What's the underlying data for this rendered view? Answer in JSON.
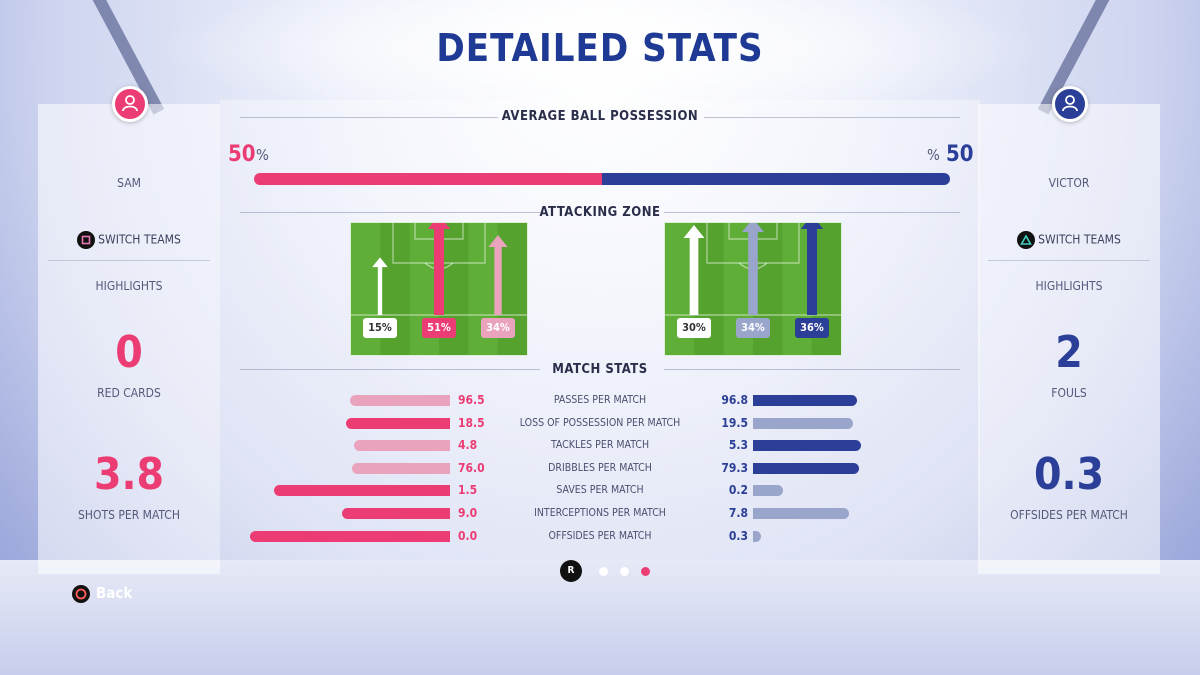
{
  "title": "DETAILED STATS",
  "colors": {
    "home": "#ec3c74",
    "home_light": "#eaa3bd",
    "away": "#2b3f98",
    "away_light": "#9aa5cc"
  },
  "players": {
    "left": {
      "name": "SAM",
      "avatar_icon": "user-icon",
      "switch_button_icon": "square-button-icon",
      "switch_label": "SWITCH TEAMS",
      "highlights_label": "HIGHLIGHTS",
      "highlight1": {
        "value": "0",
        "label": "RED CARDS"
      },
      "highlight2": {
        "value": "3.8",
        "label": "SHOTS PER MATCH"
      }
    },
    "right": {
      "name": "VICTOR",
      "avatar_icon": "user-icon",
      "switch_button_icon": "triangle-button-icon",
      "switch_label": "SWITCH TEAMS",
      "highlights_label": "HIGHLIGHTS",
      "highlight1": {
        "value": "2",
        "label": "FOULS"
      },
      "highlight2": {
        "value": "0.3",
        "label": "OFFSIDES PER MATCH"
      }
    }
  },
  "possession": {
    "label": "AVERAGE BALL POSSESSION",
    "home_value": "50",
    "away_value": "50",
    "unit": "%",
    "home_pct": 50
  },
  "attacking_zone": {
    "label": "ATTACKING ZONE",
    "home": [
      {
        "zone": "left",
        "pct": 15,
        "text": "15%"
      },
      {
        "zone": "center",
        "pct": 51,
        "text": "51%"
      },
      {
        "zone": "right",
        "pct": 34,
        "text": "34%"
      }
    ],
    "away": [
      {
        "zone": "left",
        "pct": 30,
        "text": "30%"
      },
      {
        "zone": "center",
        "pct": 34,
        "text": "34%"
      },
      {
        "zone": "right",
        "pct": 36,
        "text": "36%"
      }
    ]
  },
  "match_stats": {
    "label": "MATCH STATS",
    "rows": [
      {
        "label": "PASSES PER MATCH",
        "home": "96.5",
        "away": "96.8",
        "home_frac": 0.5,
        "away_frac": 0.52,
        "leader": "away"
      },
      {
        "label": "LOSS OF POSSESSION PER MATCH",
        "home": "18.5",
        "away": "19.5",
        "home_frac": 0.52,
        "away_frac": 0.5,
        "leader": "home"
      },
      {
        "label": "TACKLES PER MATCH",
        "home": "4.8",
        "away": "5.3",
        "home_frac": 0.48,
        "away_frac": 0.54,
        "leader": "away"
      },
      {
        "label": "DRIBBLES PER MATCH",
        "home": "76.0",
        "away": "79.3",
        "home_frac": 0.49,
        "away_frac": 0.53,
        "leader": "away"
      },
      {
        "label": "SAVES PER MATCH",
        "home": "1.5",
        "away": "0.2",
        "home_frac": 0.88,
        "away_frac": 0.15,
        "leader": "home"
      },
      {
        "label": "INTERCEPTIONS PER MATCH",
        "home": "9.0",
        "away": "7.8",
        "home_frac": 0.54,
        "away_frac": 0.48,
        "leader": "home"
      },
      {
        "label": "OFFSIDES PER MATCH",
        "home": "0.0",
        "away": "0.3",
        "home_frac": 1.0,
        "away_frac": 0.04,
        "leader": "home"
      }
    ]
  },
  "pager": {
    "button_icon": "r-stick-icon",
    "button_label": "R",
    "pages": 3,
    "current": 3
  },
  "back": {
    "button_icon": "circle-button-icon",
    "label": "Back"
  }
}
